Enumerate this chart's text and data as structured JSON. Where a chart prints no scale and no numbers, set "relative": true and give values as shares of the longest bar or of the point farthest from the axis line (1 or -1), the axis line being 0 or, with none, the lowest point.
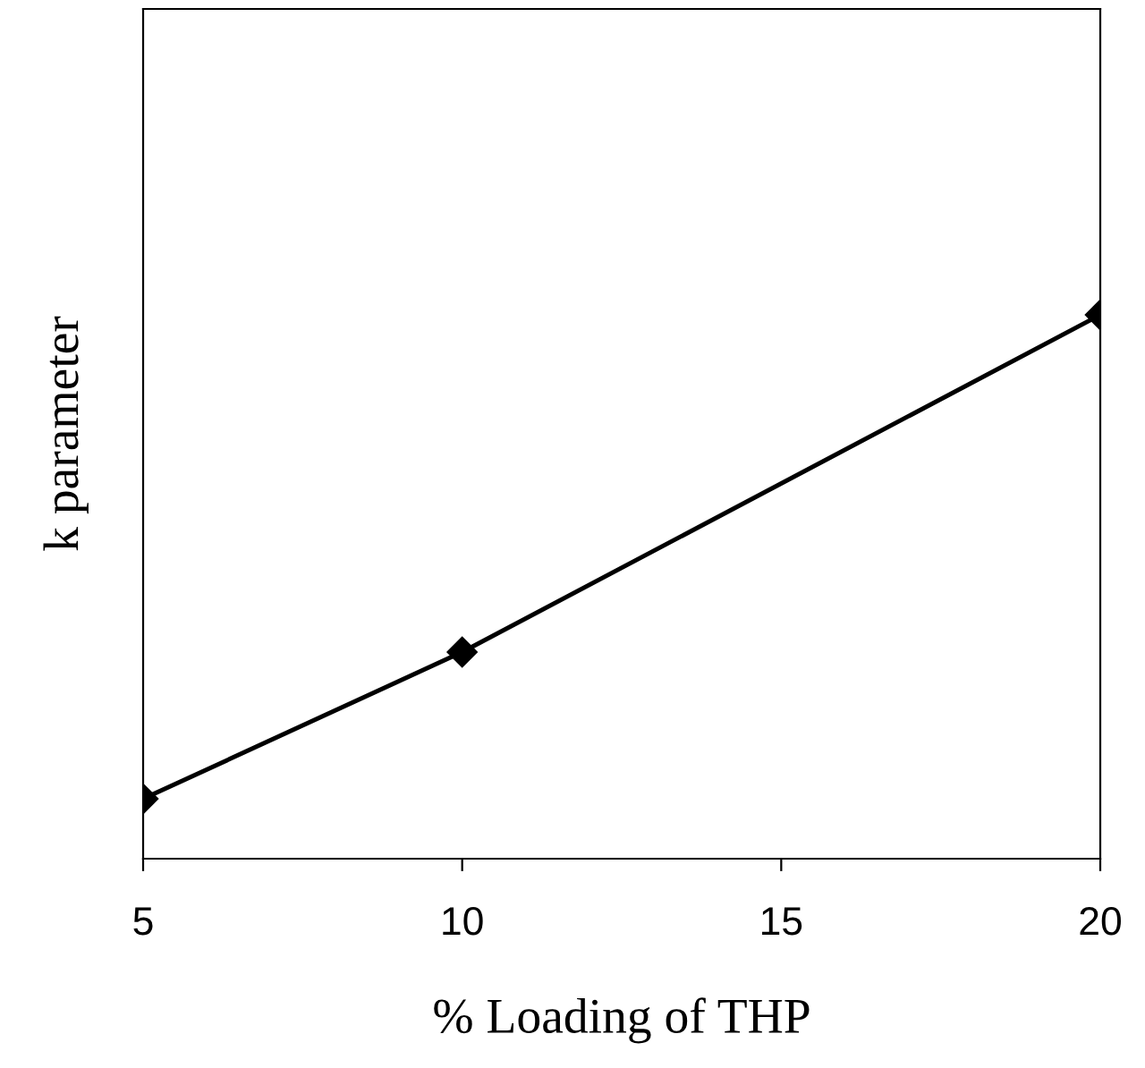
{
  "chart_data": {
    "type": "line",
    "relative": true,
    "xlabel": "% Loading of THP",
    "ylabel": "k parameter",
    "x": [
      5,
      10,
      20
    ],
    "xlim": [
      5,
      20
    ],
    "xticks": [
      5,
      10,
      15,
      20
    ],
    "series": [
      {
        "color": "#000000",
        "values": [
          0.11,
          0.38,
          1
        ]
      }
    ],
    "marker": "diamond",
    "line_style": "solid",
    "grid": false,
    "legend": false
  }
}
